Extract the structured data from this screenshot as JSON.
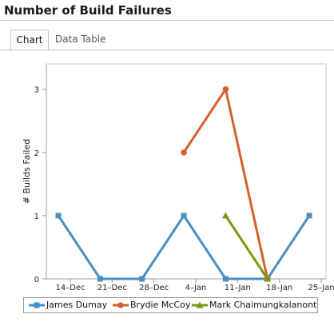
{
  "page": {
    "title": "Number of Build Failures"
  },
  "tabs": [
    {
      "label": "Chart",
      "active": true
    },
    {
      "label": "Data Table",
      "active": false
    }
  ],
  "chart_data": {
    "type": "line",
    "title": "",
    "xlabel": "",
    "ylabel": "# Builds Failed",
    "x_ticks": [
      "14–Dec",
      "21–Dec",
      "28–Dec",
      "4–Jan",
      "11–Jan",
      "18–Jan",
      "25–Jan"
    ],
    "y_ticks": [
      "0",
      "1",
      "2",
      "3"
    ],
    "ylim": [
      0,
      3.4
    ],
    "grid": false,
    "legend": "bottom",
    "series": [
      {
        "name": "James Dumay",
        "color": "#4a8fc4",
        "marker": "square",
        "x": [
          "12–Dec",
          "19–Dec",
          "26–Dec",
          "2–Jan",
          "9–Jan",
          "16–Jan",
          "23–Jan"
        ],
        "values": [
          1,
          0,
          0,
          1,
          0,
          0,
          1
        ]
      },
      {
        "name": "Brydie McCoy",
        "color": "#d4602b",
        "marker": "circle",
        "x": [
          "2–Jan",
          "9–Jan",
          "16–Jan"
        ],
        "values": [
          2,
          3,
          0
        ]
      },
      {
        "name": "Mark Chaimungkalanont",
        "color": "#7a9a12",
        "marker": "triangle",
        "x": [
          "9–Jan",
          "16–Jan"
        ],
        "values": [
          1,
          0
        ]
      }
    ]
  }
}
